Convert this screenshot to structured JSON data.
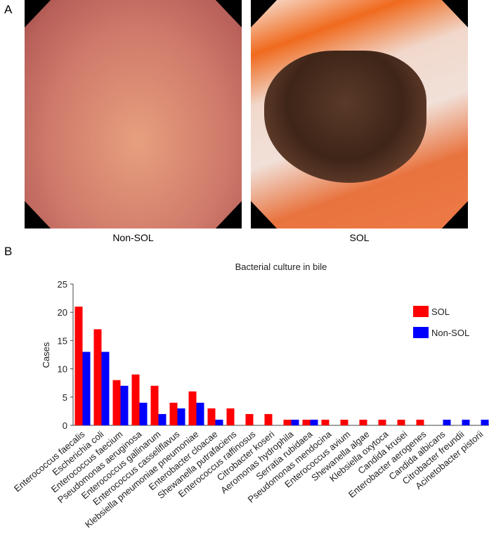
{
  "panel_a": {
    "label": "A",
    "images": [
      {
        "caption": "Non-SOL"
      },
      {
        "caption": "SOL"
      }
    ]
  },
  "panel_b": {
    "label": "B"
  },
  "chart_data": {
    "type": "bar",
    "title": "Bacterial culture in bile",
    "y_label": "Cases",
    "categories": [
      "Enterococcus faecalis",
      "Escherichia coli",
      "Enterococcus faecium",
      "Pseudomonas aeruginosa",
      "Enterococcus gallinarum",
      "Enterococcus casseliflavus",
      "Klebsiella pneumoniae pneumoniae",
      "Enterobacter cloacae",
      "Shewanella putrafaciens",
      "Enterococcus raffinosus",
      "Citrobacter koseri",
      "Aeromonas hydrophila",
      "Serratia rubidaea",
      "Pseudomonas mendocina",
      "Enterococcus avium",
      "Shewanella algae",
      "Klebsiella oxytoca",
      "Candida krusei",
      "Enterobacter aerogenes",
      "Candida albicans",
      "Citrobacter freundii",
      "Acinetobacter pistorii"
    ],
    "series": [
      {
        "name": "SOL",
        "color": "#ff0000",
        "values": [
          21,
          17,
          8,
          9,
          7,
          4,
          6,
          3,
          3,
          2,
          2,
          1,
          1,
          1,
          1,
          1,
          1,
          1,
          1,
          0,
          0,
          0
        ]
      },
      {
        "name": "Non-SOL",
        "color": "#0000ff",
        "values": [
          13,
          13,
          7,
          4,
          2,
          3,
          4,
          1,
          0,
          0,
          0,
          1,
          1,
          0,
          0,
          0,
          0,
          0,
          0,
          1,
          1,
          1
        ]
      }
    ],
    "ylim": [
      0,
      25
    ],
    "yticks": [
      0,
      5,
      10,
      15,
      20,
      25
    ],
    "grid": false,
    "legend": "upper right"
  }
}
